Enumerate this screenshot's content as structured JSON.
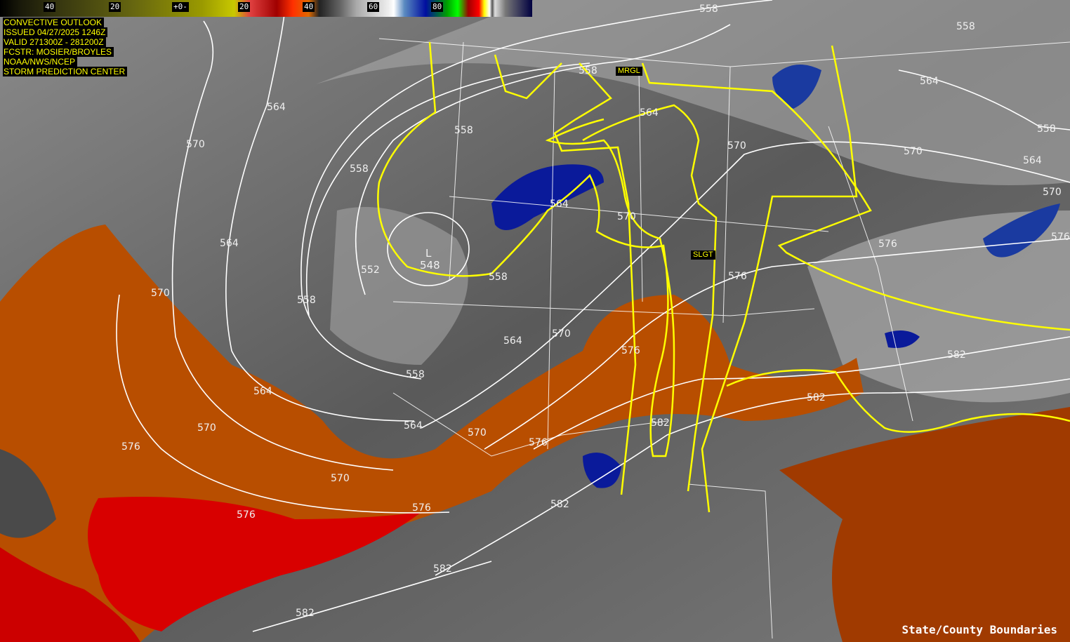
{
  "colorbar": {
    "labels": [
      "40",
      "20",
      "+0-",
      "20",
      "40",
      "60",
      "80"
    ]
  },
  "info": {
    "lines": [
      "CONVECTIVE OUTLOOK",
      "ISSUED 04/27/2025 1246Z",
      "VALID 271300Z - 281200Z",
      "FCSTR: MOSIER/BROYLES",
      "NOAA/NWS/NCEP",
      "STORM PREDICTION CENTER"
    ]
  },
  "outlook_categories": {
    "marginal": "MRGL",
    "slight": "SLGT"
  },
  "outlook_color": "#ffff00",
  "low_center": {
    "symbol": "L",
    "value": "548"
  },
  "contour_labels": [
    "558",
    "558",
    "564",
    "558",
    "564",
    "570",
    "576",
    "570",
    "576",
    "582",
    "582",
    "576",
    "570",
    "564",
    "558",
    "558",
    "558",
    "564",
    "570",
    "564",
    "570",
    "552",
    "558",
    "558",
    "564",
    "570",
    "570",
    "564",
    "576",
    "558",
    "564",
    "570",
    "576",
    "564",
    "570",
    "576",
    "582",
    "570",
    "576",
    "576",
    "582",
    "582",
    "582"
  ],
  "footer": "State/County Boundaries",
  "colors": {
    "background_gray": "#6e6e6e",
    "warm_orange": "#c85a00",
    "hot_red": "#e00000",
    "moisture_blue": "#0a1a9a",
    "contour": "#ffffff"
  }
}
